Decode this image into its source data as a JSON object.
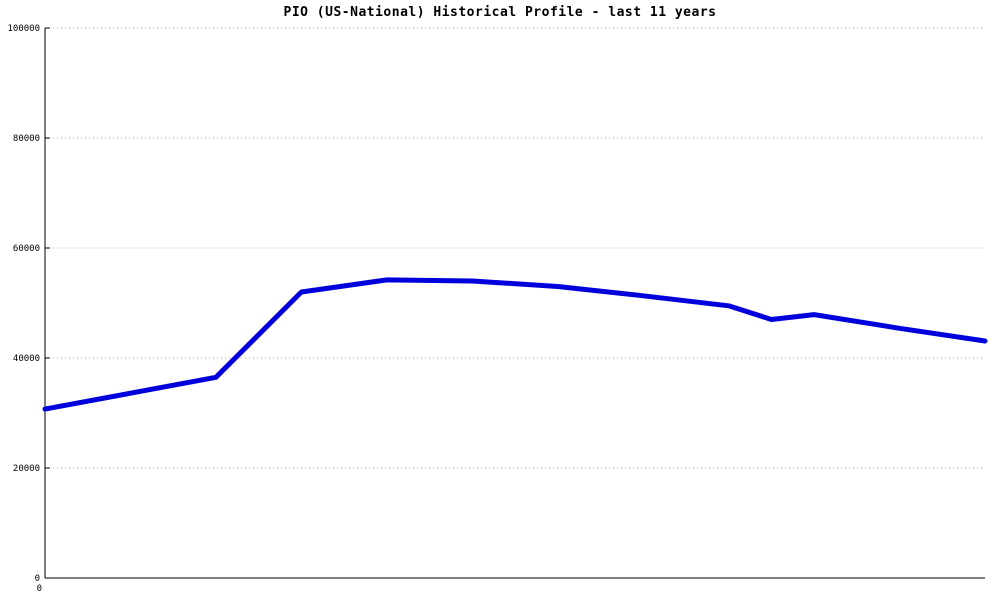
{
  "chart": {
    "title": "PIO (US-National) Historical Profile - last 11 years"
  },
  "chart_data": {
    "type": "line",
    "title": "PIO (US-National) Historical Profile - last 11 years",
    "xlabel": "",
    "ylabel": "",
    "series_name": "PIO (US-National)",
    "x": [
      0,
      1,
      2,
      3,
      4,
      5,
      6,
      7,
      8,
      8.5,
      9,
      10,
      11
    ],
    "values": [
      30700,
      33600,
      36500,
      52000,
      54200,
      54000,
      53000,
      51300,
      49500,
      47000,
      47900,
      45400,
      43100
    ],
    "xlim": [
      0,
      11
    ],
    "ylim": [
      0,
      100000
    ],
    "yticks": [
      0,
      20000,
      40000,
      60000,
      80000,
      100000
    ],
    "ytick_labels": [
      "0",
      "20000",
      "40000",
      "60000",
      "80000",
      "100000"
    ],
    "xtick_labels": [
      "0"
    ],
    "grid": "dotted-horizontal",
    "grid_color": "#aaaaaa",
    "axis_color": "#000000",
    "line_color": "#0000dd",
    "line_width": 5,
    "background": "#ffffff",
    "legend": "none"
  }
}
